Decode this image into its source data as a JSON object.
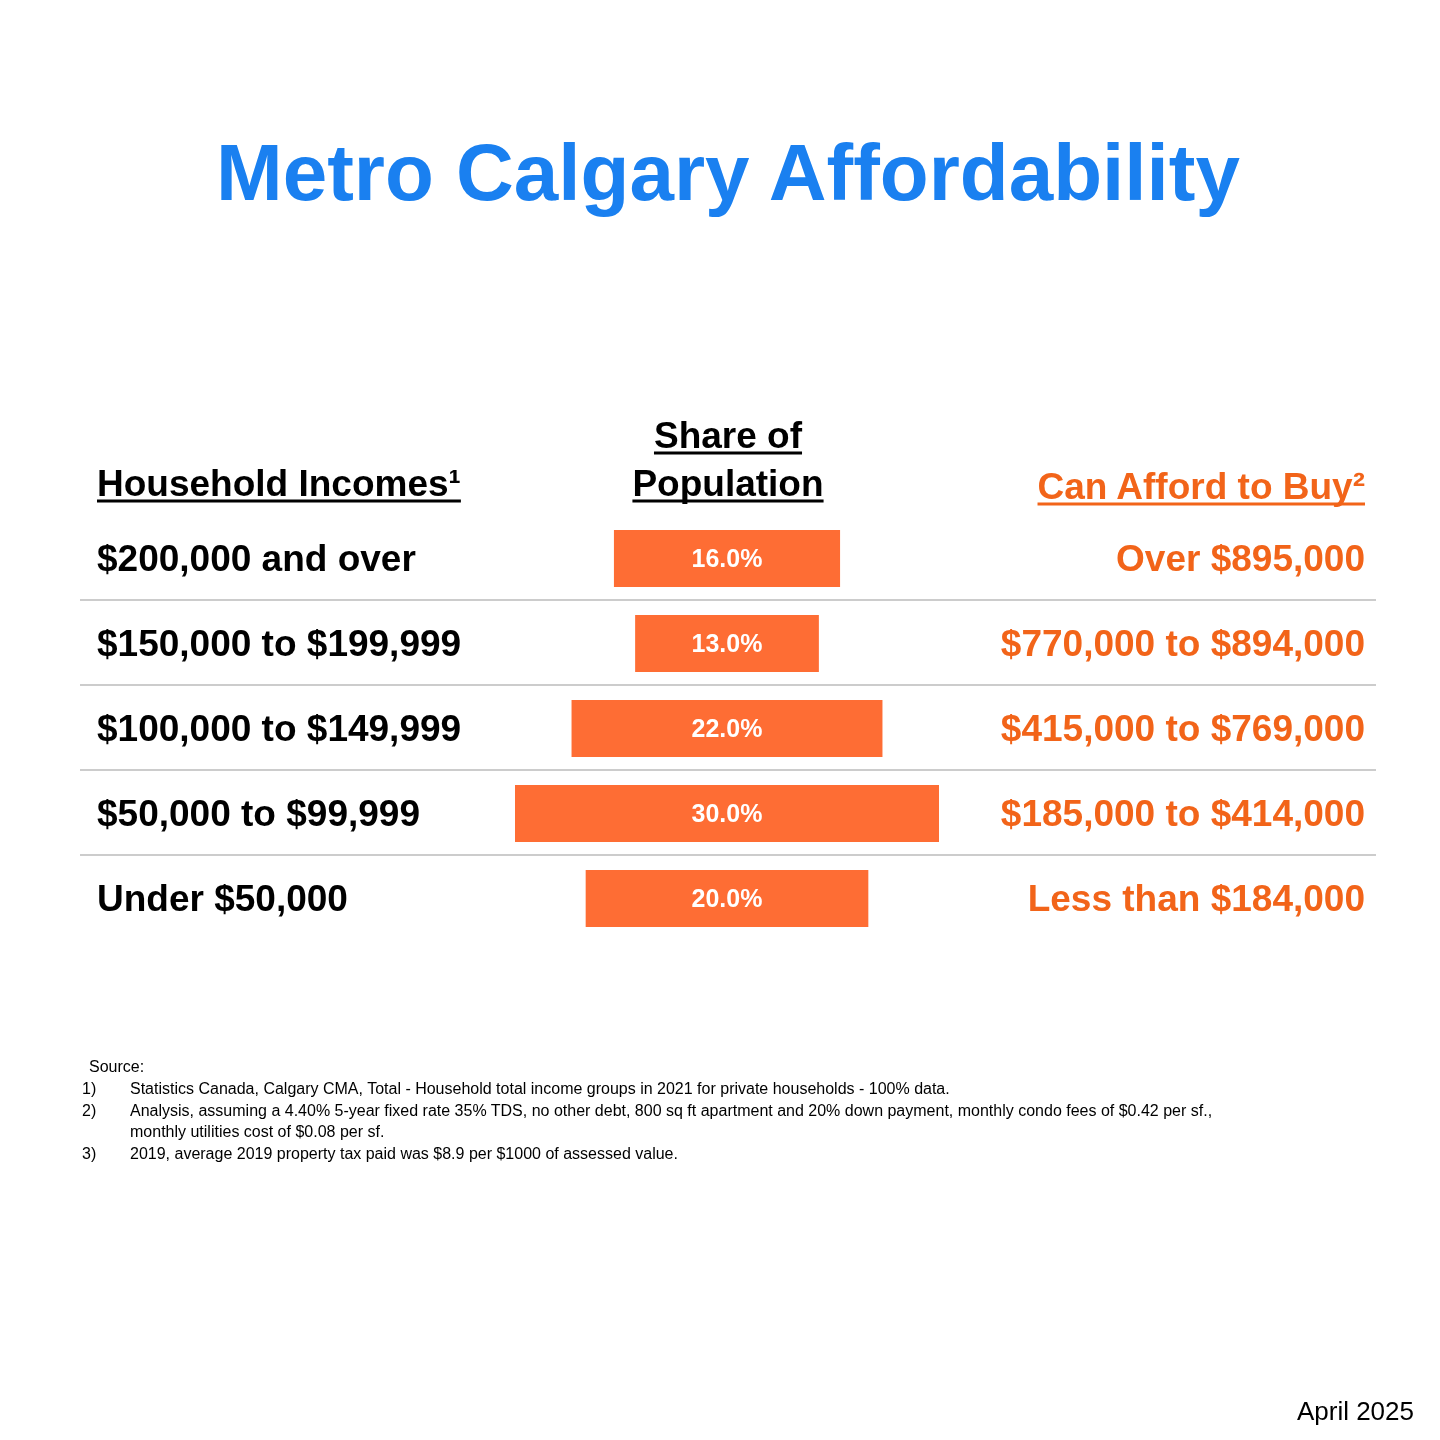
{
  "chart_data": {
    "type": "other",
    "title": "Metro Calgary Affordability",
    "ylabel": "Household Incomes¹",
    "xlabel": "Share of Population",
    "y2label": "Can Afford to Buy²",
    "categories": [
      "$200,000 and over",
      "$150,000 to $199,999",
      "$100,000 to $149,999",
      "$50,000 to $99,999",
      "Under $50,000"
    ],
    "values": [
      16.0,
      13.0,
      22.0,
      30.0,
      20.0
    ],
    "value_labels": [
      "16.0%",
      "13.0%",
      "22.0%",
      "30.0%",
      "20.0%"
    ],
    "color": "#fe6d34",
    "annotations": [
      {
        "text": "Over $895,000",
        "y": "$200,000 and over"
      },
      {
        "text": "$770,000 to $894,000",
        "y": "$150,000 to $199,999"
      },
      {
        "text": "$415,000 to $769,000",
        "y": "$100,000 to $149,999"
      },
      {
        "text": "$185,000 to $414,000",
        "y": "$50,000 to $99,999"
      },
      {
        "text": "Less than $184,000",
        "y": "Under $50,000"
      },
      "Source:",
      "1) Statistics Canada, Calgary CMA, Total - Household total income groups in 2021 for private households - 100% data.",
      "2) Analysis, assuming a 4.40% 5-year fixed rate 35% TDS, no other debt, 800 sq ft apartment and 20% down payment, monthly condo fees of $0.42 per sf., monthly utilities cost of $0.08 per sf.",
      "3) 2019, average 2019 property tax paid was $8.9 per $1000 of assessed value.",
      "April 2025"
    ]
  }
}
